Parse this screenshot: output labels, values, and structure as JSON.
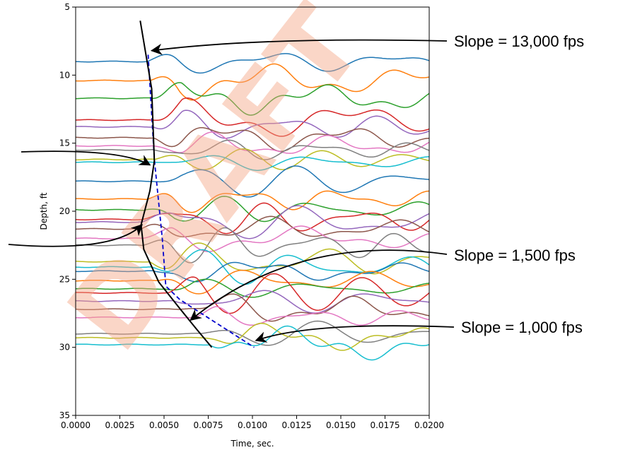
{
  "chart_data": {
    "type": "line",
    "xlabel": "Time, sec.",
    "ylabel": "Depth, ft",
    "xlim": [
      0.0,
      0.02
    ],
    "ylim": [
      35,
      5
    ],
    "x_ticks": [
      "0.0000",
      "0.0025",
      "0.0050",
      "0.0075",
      "0.0100",
      "0.0125",
      "0.0150",
      "0.0175",
      "0.0200"
    ],
    "y_ticks": [
      "5",
      "10",
      "15",
      "20",
      "25",
      "30",
      "35"
    ],
    "watermark": "DRAFT",
    "trace_colors": [
      "#1f77b4",
      "#ff7f0e",
      "#2ca02c",
      "#d62728",
      "#9467bd",
      "#8c564b",
      "#e377c2",
      "#7f7f7f",
      "#bcbd22",
      "#17becf"
    ],
    "trace_depths": [
      9.0,
      10.4,
      11.7,
      13.3,
      13.8,
      14.6,
      15.2,
      15.5,
      16.2,
      16.4,
      17.8,
      19.1,
      19.9,
      20.6,
      20.8,
      21.3,
      22.0,
      22.5,
      23.7,
      24.1,
      24.4,
      25.1,
      25.7,
      26.0,
      26.6,
      27.2,
      27.8,
      29.0,
      29.3,
      29.8
    ],
    "first_break_curve": {
      "color": "#000000",
      "points": [
        [
          0.00365,
          6.0
        ],
        [
          0.0043,
          11.0
        ],
        [
          0.00445,
          16.3
        ],
        [
          0.0042,
          18.5
        ],
        [
          0.0037,
          21.0
        ],
        [
          0.00385,
          22.8
        ],
        [
          0.0047,
          25.2
        ],
        [
          0.0058,
          27.0
        ],
        [
          0.0068,
          28.6
        ],
        [
          0.0077,
          30.0
        ]
      ]
    },
    "slope_lines": {
      "color": "#0000cc",
      "points": [
        [
          0.0041,
          8.5
        ],
        [
          0.00445,
          16.2
        ],
        [
          0.0049,
          22.0
        ],
        [
          0.0051,
          25.5
        ],
        [
          0.0059,
          26.5
        ],
        [
          0.0101,
          30.0
        ]
      ]
    },
    "annotations": [
      {
        "text": "Slope = 13,000 fps",
        "target": [
          0.0043,
          8.2
        ]
      },
      {
        "text": "Slope = 1,500 fps",
        "target": [
          0.0065,
          28.0
        ]
      },
      {
        "text": "Slope = 1,000 fps",
        "target": [
          0.0102,
          29.5
        ]
      },
      {
        "text": "",
        "target": [
          0.0042,
          16.6
        ]
      },
      {
        "text": "",
        "target": [
          0.00375,
          21.0
        ]
      }
    ]
  }
}
